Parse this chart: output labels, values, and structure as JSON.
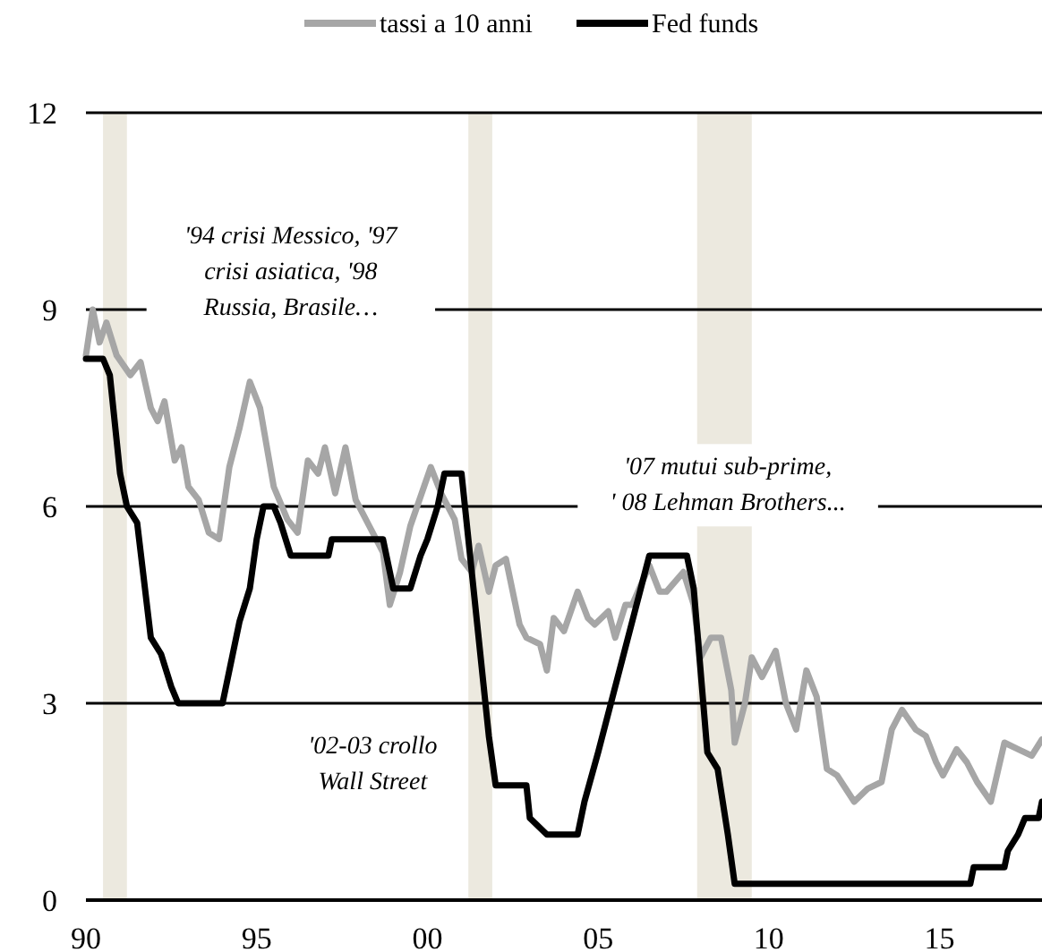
{
  "chart_data": {
    "type": "line",
    "legend": "top",
    "grid": "y",
    "line_style": "solid",
    "marker": "none",
    "xlim": [
      1990,
      2018
    ],
    "xticks": [
      {
        "value": 1990,
        "label": "90"
      },
      {
        "value": 1995,
        "label": "95"
      },
      {
        "value": 2000,
        "label": "00"
      },
      {
        "value": 2005,
        "label": "05"
      },
      {
        "value": 2010,
        "label": "10"
      },
      {
        "value": 2015,
        "label": "15"
      }
    ],
    "ylim": [
      0,
      12
    ],
    "yticks": [
      0,
      3,
      6,
      9,
      12
    ],
    "bands": [
      {
        "axis": "x",
        "from": 1990.5,
        "to": 1991.2,
        "color": "#ece9df"
      },
      {
        "axis": "x",
        "from": 2001.2,
        "to": 2001.9,
        "color": "#ece9df"
      },
      {
        "axis": "x",
        "from": 2007.9,
        "to": 2009.5,
        "color": "#ece9df"
      }
    ],
    "annotations": [
      "'94 crisi Messico, '97\ncrisi asiatica, '98\nRussia, Brasile…",
      "'02-03 crollo\nWall Street",
      "'07 mutui sub-prime,\n' 08 Lehman Brothers..."
    ],
    "series": [
      {
        "name": "tassi a 10 anni",
        "color": "#a6a6a6",
        "x": [
          1990,
          1990.2,
          1990.4,
          1990.6,
          1990.9,
          1991.3,
          1991.6,
          1991.9,
          1992.1,
          1992.3,
          1992.6,
          1992.8,
          1993,
          1993.3,
          1993.6,
          1993.9,
          1994.2,
          1994.5,
          1994.8,
          1995.1,
          1995.5,
          1995.9,
          1996.2,
          1996.5,
          1996.8,
          1997,
          1997.3,
          1997.6,
          1997.9,
          1998.3,
          1998.7,
          1998.9,
          1999.2,
          1999.5,
          1999.9,
          2000.1,
          2000.4,
          2000.8,
          2001,
          2001.3,
          2001.5,
          2001.8,
          2002,
          2002.3,
          2002.7,
          2002.9,
          2003.3,
          2003.5,
          2003.7,
          2004,
          2004.4,
          2004.7,
          2004.9,
          2005.3,
          2005.5,
          2005.8,
          2006,
          2006.5,
          2006.8,
          2007,
          2007.5,
          2007.8,
          2008,
          2008.3,
          2008.6,
          2008.9,
          2009,
          2009.3,
          2009.5,
          2009.8,
          2010.2,
          2010.5,
          2010.8,
          2011.1,
          2011.4,
          2011.7,
          2012,
          2012.5,
          2012.9,
          2013.3,
          2013.6,
          2013.9,
          2014.3,
          2014.6,
          2014.9,
          2015.1,
          2015.5,
          2015.8,
          2016.1,
          2016.5,
          2016.9,
          2017.3,
          2017.7,
          2018
        ],
        "values": [
          8.3,
          9.0,
          8.5,
          8.8,
          8.3,
          8.0,
          8.2,
          7.5,
          7.3,
          7.6,
          6.7,
          6.9,
          6.3,
          6.1,
          5.6,
          5.5,
          6.6,
          7.2,
          7.9,
          7.5,
          6.3,
          5.8,
          5.6,
          6.7,
          6.5,
          6.9,
          6.2,
          6.9,
          6.1,
          5.7,
          5.3,
          4.5,
          5.0,
          5.7,
          6.3,
          6.6,
          6.2,
          5.8,
          5.2,
          5.0,
          5.4,
          4.7,
          5.1,
          5.2,
          4.2,
          4.0,
          3.9,
          3.5,
          4.3,
          4.1,
          4.7,
          4.3,
          4.2,
          4.4,
          4.0,
          4.5,
          4.5,
          5.1,
          4.7,
          4.7,
          5.0,
          4.5,
          3.7,
          4.0,
          4.0,
          3.2,
          2.4,
          3.0,
          3.7,
          3.4,
          3.8,
          3.0,
          2.6,
          3.5,
          3.1,
          2.0,
          1.9,
          1.5,
          1.7,
          1.8,
          2.6,
          2.9,
          2.6,
          2.5,
          2.1,
          1.9,
          2.3,
          2.1,
          1.8,
          1.5,
          2.4,
          2.3,
          2.2,
          2.45
        ]
      },
      {
        "name": "Fed funds",
        "color": "#000000",
        "x": [
          1990,
          1990.5,
          1990.7,
          1991,
          1991.2,
          1991.5,
          1991.9,
          1992.2,
          1992.5,
          1992.7,
          1994,
          1994.3,
          1994.5,
          1994.8,
          1995,
          1995.2,
          1995.5,
          1995.7,
          1996,
          1997.1,
          1997.2,
          1998.7,
          1998.9,
          1999,
          1999.5,
          1999.8,
          2000,
          2000.3,
          2000.5,
          2001,
          2001.1,
          2001.3,
          2001.5,
          2001.8,
          2002,
          2002.9,
          2003,
          2003.5,
          2004.4,
          2004.6,
          2005,
          2005.5,
          2006,
          2006.5,
          2007.6,
          2007.8,
          2008,
          2008.2,
          2008.5,
          2008.8,
          2009,
          2015.9,
          2016,
          2016.9,
          2017,
          2017.3,
          2017.5,
          2017.9,
          2018
        ],
        "values": [
          8.25,
          8.25,
          8.0,
          6.5,
          6.0,
          5.75,
          4.0,
          3.75,
          3.25,
          3.0,
          3.0,
          3.75,
          4.25,
          4.75,
          5.5,
          6.0,
          6.0,
          5.75,
          5.25,
          5.25,
          5.5,
          5.5,
          5.0,
          4.75,
          4.75,
          5.25,
          5.5,
          6.0,
          6.5,
          6.5,
          6.0,
          5.0,
          4.0,
          2.5,
          1.75,
          1.75,
          1.25,
          1.0,
          1.0,
          1.5,
          2.25,
          3.25,
          4.25,
          5.25,
          5.25,
          4.75,
          3.5,
          2.25,
          2.0,
          1.0,
          0.25,
          0.25,
          0.5,
          0.5,
          0.75,
          1.0,
          1.25,
          1.25,
          1.5
        ]
      }
    ]
  }
}
